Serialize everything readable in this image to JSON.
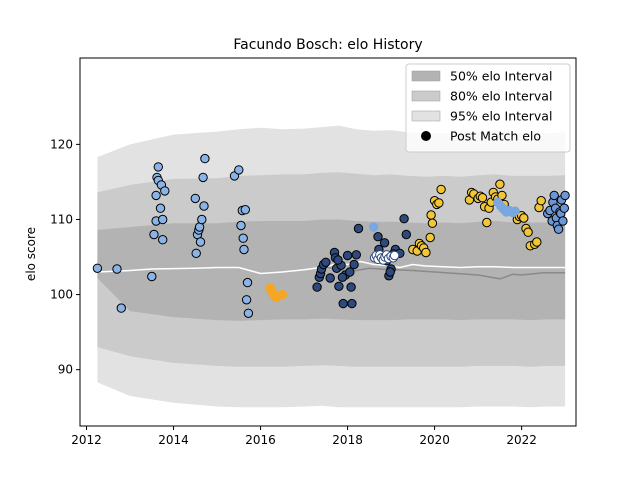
{
  "chart_data": {
    "type": "scatter",
    "title": "Facundo Bosch: elo History",
    "xlabel": "",
    "ylabel": "elo score",
    "xlim": [
      2011.85,
      2023.25
    ],
    "ylim": [
      82.5,
      131.5
    ],
    "xticks": [
      2012,
      2014,
      2016,
      2018,
      2020,
      2022
    ],
    "yticks": [
      90,
      100,
      110,
      120
    ],
    "grid": false,
    "legend_position": "top-right",
    "legend": [
      {
        "label": "50% elo Interval",
        "kind": "patch",
        "color": "#b3b3b3"
      },
      {
        "label": "80% elo Interval",
        "kind": "patch",
        "color": "#cbcbcb"
      },
      {
        "label": "95% elo Interval",
        "kind": "patch",
        "color": "#e2e2e2"
      },
      {
        "label": "Post Match elo",
        "kind": "marker",
        "color": "#000000"
      }
    ],
    "bands": {
      "x": [
        2012.25,
        2013.0,
        2014.0,
        2015.0,
        2015.5,
        2016.0,
        2016.5,
        2017.0,
        2017.4,
        2017.8,
        2018.2,
        2018.6,
        2019.0,
        2019.4,
        2019.8,
        2020.2,
        2020.6,
        2021.0,
        2021.4,
        2021.8,
        2022.2,
        2022.6,
        2023.0
      ],
      "p95_upper": [
        118.3,
        120.0,
        121.3,
        121.7,
        122.0,
        122.2,
        122.0,
        122.1,
        122.3,
        122.5,
        122.0,
        121.8,
        121.9,
        121.6,
        121.5,
        121.5,
        121.4,
        121.6,
        121.8,
        121.5,
        121.6,
        121.5,
        121.6
      ],
      "p80_upper": [
        113.6,
        114.6,
        115.4,
        115.5,
        115.8,
        115.9,
        116.0,
        116.0,
        116.2,
        116.3,
        116.1,
        115.9,
        116.0,
        115.8,
        115.7,
        115.8,
        115.7,
        115.9,
        116.0,
        115.8,
        115.8,
        115.8,
        115.9
      ],
      "p50_upper": [
        108.6,
        109.0,
        109.5,
        109.5,
        109.7,
        109.8,
        109.8,
        109.8,
        110.0,
        110.0,
        109.8,
        109.7,
        109.7,
        109.6,
        109.5,
        109.6,
        109.5,
        109.7,
        109.8,
        109.6,
        109.6,
        109.6,
        109.7
      ],
      "p50_lower": [
        102.2,
        97.8,
        97.0,
        96.6,
        96.5,
        96.6,
        96.7,
        96.7,
        96.8,
        96.7,
        96.6,
        96.6,
        96.6,
        96.7,
        96.7,
        96.7,
        96.6,
        96.7,
        96.7,
        96.7,
        96.6,
        96.7,
        96.7
      ],
      "p80_lower": [
        93.0,
        91.8,
        90.9,
        90.5,
        90.4,
        90.4,
        90.4,
        90.5,
        90.6,
        90.5,
        90.4,
        90.4,
        90.4,
        90.4,
        90.4,
        90.4,
        90.4,
        90.5,
        90.5,
        90.5,
        90.4,
        90.5,
        90.5
      ],
      "p95_lower": [
        88.3,
        86.5,
        85.6,
        85.1,
        85.0,
        85.0,
        85.0,
        85.1,
        85.2,
        85.0,
        85.0,
        85.0,
        85.0,
        85.0,
        85.0,
        85.0,
        85.0,
        85.1,
        85.1,
        85.1,
        85.0,
        85.1,
        85.1
      ]
    },
    "series": [
      {
        "kind": "line",
        "color": "#ffffff",
        "width": 1.5,
        "x": [
          2012.25,
          2013.0,
          2013.5,
          2014.5,
          2015.0,
          2015.5,
          2016.0,
          2016.5,
          2017.0,
          2017.5,
          2017.8,
          2018.0,
          2018.3,
          2018.6,
          2018.9,
          2019.2,
          2019.5,
          2019.8,
          2020.2,
          2020.6,
          2021.0,
          2021.4,
          2021.8,
          2022.2,
          2022.6,
          2023.0
        ],
        "y": [
          103.0,
          103.2,
          103.4,
          103.5,
          103.6,
          103.6,
          102.8,
          103.0,
          103.3,
          103.7,
          104.2,
          104.0,
          104.4,
          104.0,
          103.9,
          103.6,
          104.0,
          103.8,
          103.7,
          103.6,
          103.7,
          103.7,
          103.6,
          103.6,
          103.6,
          103.6
        ]
      },
      {
        "kind": "line",
        "color": "#8a8a8a",
        "width": 1.5,
        "x": [
          2017.5,
          2018.0,
          2018.5,
          2019.0,
          2019.5,
          2020.0,
          2020.5,
          2021.0,
          2021.5,
          2021.8,
          2022.0,
          2022.5,
          2023.0
        ],
        "y": [
          103.7,
          103.0,
          103.5,
          103.3,
          103.2,
          103.0,
          102.8,
          102.6,
          102.1,
          102.7,
          102.6,
          102.9,
          102.9
        ]
      },
      {
        "kind": "scatter",
        "color": "#8ab4e8",
        "edge": "#000000",
        "x": [
          2012.25,
          2012.7,
          2012.8,
          2013.5,
          2013.55,
          2013.6,
          2013.6,
          2013.62,
          2013.65,
          2013.65,
          2013.7,
          2013.72,
          2013.75,
          2013.75,
          2013.8,
          2014.5,
          2014.52,
          2014.55,
          2014.58,
          2014.6,
          2014.62,
          2014.65,
          2014.68,
          2014.7,
          2014.72,
          2015.4,
          2015.5,
          2015.55,
          2015.58,
          2015.6,
          2015.62,
          2015.65,
          2015.68,
          2015.7,
          2015.72
        ],
        "y": [
          103.5,
          103.4,
          98.2,
          102.4,
          108.0,
          109.8,
          113.2,
          115.6,
          117.0,
          115.2,
          111.5,
          114.6,
          110.0,
          107.3,
          113.8,
          112.8,
          105.5,
          108.0,
          108.6,
          109.0,
          107.0,
          110.0,
          115.6,
          111.8,
          118.1,
          115.8,
          116.6,
          109.2,
          111.2,
          107.5,
          106.0,
          111.3,
          99.3,
          101.6,
          97.5
        ]
      },
      {
        "kind": "scatter",
        "color": "#f5a623",
        "edge": "#f5a623",
        "x": [
          2016.22,
          2016.25,
          2016.28,
          2016.32,
          2016.36,
          2016.5
        ],
        "y": [
          100.9,
          100.6,
          100.2,
          99.9,
          99.6,
          100.0
        ]
      },
      {
        "kind": "scatter",
        "color": "#2e4a7d",
        "edge": "#000000",
        "x": [
          2017.3,
          2017.35,
          2017.38,
          2017.4,
          2017.45,
          2017.5,
          2017.6,
          2017.7,
          2017.75,
          2017.8,
          2017.85,
          2017.9,
          2017.95,
          2018.0,
          2018.05,
          2018.1,
          2018.2,
          2018.25,
          2017.72,
          2017.78,
          2017.88,
          2018.08,
          2018.15,
          2018.7,
          2018.72,
          2018.75,
          2018.8,
          2018.85,
          2018.9,
          2018.95,
          2019.0,
          2019.1,
          2019.2,
          2019.3,
          2019.35,
          2018.78,
          2018.98,
          2019.05
        ],
        "y": [
          101.0,
          102.3,
          102.8,
          103.4,
          104.0,
          104.3,
          102.2,
          105.6,
          103.5,
          101.1,
          103.9,
          98.8,
          102.6,
          105.2,
          103.0,
          98.8,
          105.3,
          108.8,
          104.9,
          104.6,
          102.3,
          101.0,
          104.0,
          107.7,
          106.0,
          105.2,
          104.9,
          106.9,
          104.5,
          102.5,
          103.4,
          106.0,
          105.5,
          110.1,
          108.0,
          105.0,
          103.0,
          105.4
        ]
      },
      {
        "kind": "scatter",
        "color": "#ffffff",
        "edge": "#2e4a7d",
        "x": [
          2018.62,
          2018.66,
          2018.7,
          2018.74,
          2018.78,
          2018.82,
          2018.86,
          2018.9,
          2018.94,
          2019.0,
          2019.05,
          2019.08
        ],
        "y": [
          104.9,
          105.2,
          104.7,
          105.3,
          104.9,
          104.6,
          105.0,
          105.3,
          104.8,
          105.1,
          104.9,
          105.2
        ]
      },
      {
        "kind": "scatter",
        "color": "#f2c737",
        "edge": "#000000",
        "x": [
          2019.5,
          2019.6,
          2019.65,
          2019.7,
          2019.75,
          2019.8,
          2019.9,
          2019.92,
          2019.95,
          2020.0,
          2020.05,
          2020.1,
          2020.15,
          2020.8,
          2020.85,
          2020.9,
          2021.0,
          2021.05,
          2021.1,
          2021.15,
          2021.2,
          2021.25,
          2021.3,
          2021.35,
          2021.4,
          2021.45,
          2021.5,
          2021.55,
          2021.6,
          2021.9,
          2021.95,
          2022.0,
          2022.05,
          2022.1,
          2022.15,
          2022.2,
          2022.3,
          2022.35,
          2022.4,
          2022.45
        ],
        "y": [
          106.0,
          105.8,
          106.8,
          106.5,
          106.2,
          105.6,
          107.6,
          110.6,
          109.5,
          112.5,
          112.0,
          112.2,
          114.0,
          112.6,
          113.6,
          113.4,
          112.8,
          113.1,
          112.9,
          111.7,
          109.6,
          111.5,
          112.3,
          113.6,
          113.0,
          112.7,
          114.7,
          113.2,
          112.0,
          110.0,
          110.4,
          110.5,
          110.2,
          108.8,
          108.3,
          106.5,
          106.7,
          107.0,
          111.6,
          112.5
        ]
      },
      {
        "kind": "scatter",
        "color": "#7aa7e0",
        "edge": "#7aa7e0",
        "x": [
          2018.6,
          2021.45,
          2021.52,
          2021.58,
          2021.65,
          2021.72,
          2021.8,
          2021.85
        ],
        "y": [
          109.0,
          112.3,
          111.8,
          111.4,
          111.0,
          111.2,
          110.9,
          111.1
        ]
      },
      {
        "kind": "scatter",
        "color": "#6b97d6",
        "edge": "#000000",
        "x": [
          2022.6,
          2022.65,
          2022.7,
          2022.72,
          2022.75,
          2022.78,
          2022.8,
          2022.82,
          2022.85,
          2022.88,
          2022.9,
          2022.92,
          2022.95,
          2022.98,
          2023.0
        ],
        "y": [
          110.8,
          111.2,
          109.8,
          112.3,
          113.2,
          111.5,
          110.2,
          109.2,
          108.7,
          111.0,
          110.8,
          112.6,
          109.8,
          111.5,
          113.2
        ]
      }
    ]
  }
}
